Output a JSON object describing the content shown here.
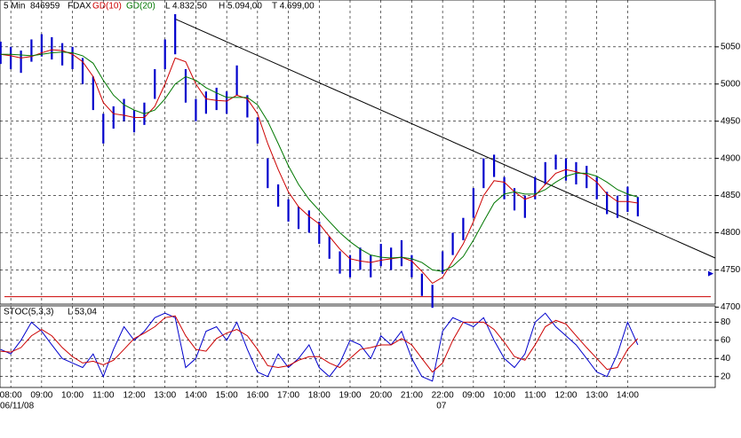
{
  "chart_data": [
    {
      "type": "range_bar",
      "interval": "5 Min",
      "id": "846959",
      "symbol": "FDAX",
      "stats": [
        "L 4.832,50",
        "H 5.094,00",
        "T 4.699,00"
      ],
      "x": [
        -0.33,
        0,
        0.33,
        0.67,
        1,
        1.33,
        1.67,
        2,
        2.33,
        2.67,
        3,
        3.33,
        3.67,
        4,
        4.33,
        4.67,
        5,
        5.33,
        5.67,
        6,
        6.33,
        6.67,
        7,
        7.33,
        7.67,
        8,
        8.33,
        8.67,
        9,
        9.33,
        9.67,
        10,
        10.33,
        10.67,
        11,
        11.33,
        11.67,
        12,
        12.33,
        12.67,
        13,
        13.33,
        13.67,
        14,
        14.33,
        14.67,
        15,
        15.33,
        15.67,
        16,
        16.33,
        16.67,
        17,
        17.33,
        17.67,
        18,
        18.33,
        18.67,
        19,
        19.33,
        19.67,
        20,
        20.33
      ],
      "high": [
        5057,
        5050,
        5045,
        5060,
        5067,
        5063,
        5055,
        5050,
        5035,
        5010,
        4960,
        4970,
        4980,
        4965,
        4975,
        5020,
        5060,
        5094,
        5020,
        4980,
        4990,
        4995,
        4990,
        5025,
        4985,
        4955,
        4900,
        4865,
        4845,
        4835,
        4830,
        4815,
        4795,
        4775,
        4770,
        4780,
        4770,
        4785,
        4780,
        4790,
        4770,
        4745,
        4730,
        4775,
        4800,
        4820,
        4860,
        4900,
        4905,
        4875,
        4860,
        4850,
        4875,
        4895,
        4905,
        4900,
        4895,
        4890,
        4875,
        4855,
        4850,
        4862,
        4848
      ],
      "low": [
        5027,
        5020,
        5015,
        5030,
        5037,
        5033,
        5025,
        5020,
        5000,
        4965,
        4920,
        4940,
        4950,
        4935,
        4945,
        4980,
        5020,
        5040,
        4975,
        4950,
        4960,
        4965,
        4960,
        4985,
        4955,
        4920,
        4860,
        4835,
        4815,
        4805,
        4800,
        4785,
        4765,
        4745,
        4740,
        4750,
        4740,
        4755,
        4750,
        4755,
        4740,
        4715,
        4699,
        4745,
        4770,
        4790,
        4820,
        4860,
        4875,
        4845,
        4830,
        4820,
        4845,
        4865,
        4885,
        4870,
        4865,
        4860,
        4845,
        4825,
        4820,
        4828,
        4822
      ],
      "bar_color": "#0000cc",
      "series": [
        {
          "name": "GD(10)",
          "color": "#cc0000",
          "values": [
            5040,
            5038,
            5035,
            5037,
            5042,
            5046,
            5045,
            5040,
            5030,
            5010,
            4975,
            4960,
            4958,
            4955,
            4955,
            4970,
            5000,
            5035,
            5030,
            5000,
            4980,
            4978,
            4977,
            4985,
            4980,
            4960,
            4920,
            4885,
            4855,
            4835,
            4822,
            4812,
            4795,
            4778,
            4765,
            4762,
            4760,
            4763,
            4765,
            4767,
            4762,
            4748,
            4732,
            4740,
            4762,
            4785,
            4815,
            4850,
            4870,
            4868,
            4855,
            4845,
            4850,
            4865,
            4880,
            4885,
            4882,
            4878,
            4868,
            4852,
            4842,
            4842,
            4840
          ]
        },
        {
          "name": "GD(20)",
          "color": "#007700",
          "values": [
            5040,
            5040,
            5039,
            5038,
            5040,
            5042,
            5043,
            5042,
            5038,
            5028,
            5005,
            4985,
            4972,
            4965,
            4960,
            4965,
            4980,
            5000,
            5010,
            5005,
            4995,
            4988,
            4982,
            4982,
            4982,
            4972,
            4950,
            4920,
            4890,
            4865,
            4845,
            4830,
            4815,
            4800,
            4788,
            4778,
            4770,
            4767,
            4766,
            4767,
            4765,
            4760,
            4750,
            4748,
            4755,
            4768,
            4790,
            4815,
            4840,
            4852,
            4855,
            4852,
            4852,
            4858,
            4868,
            4876,
            4880,
            4880,
            4876,
            4868,
            4858,
            4852,
            4848
          ]
        }
      ],
      "trendline": {
        "x": [
          5.3,
          22.84
        ],
        "y": [
          5088,
          4766
        ],
        "color": "#000000"
      },
      "support": {
        "value": 4714,
        "color": "#cc0000"
      },
      "last_marker": 4745,
      "ylim": [
        4704,
        5113
      ],
      "yticks": [
        4700,
        4750,
        4800,
        4850,
        4900,
        4950,
        5000,
        5050
      ],
      "xlim": [
        -0.35,
        22.84
      ],
      "xticks": [
        {
          "value": 0,
          "label": "08:00"
        },
        {
          "value": 1,
          "label": "09:00"
        },
        {
          "value": 2,
          "label": "10:00"
        },
        {
          "value": 3,
          "label": "11:00"
        },
        {
          "value": 4,
          "label": "12:00"
        },
        {
          "value": 5,
          "label": "13:00"
        },
        {
          "value": 6,
          "label": "14:00"
        },
        {
          "value": 7,
          "label": "15:00"
        },
        {
          "value": 8,
          "label": "16:00"
        },
        {
          "value": 9,
          "label": "17:00"
        },
        {
          "value": 10,
          "label": "18:00"
        },
        {
          "value": 11,
          "label": "19:00"
        },
        {
          "value": 12,
          "label": "20:00"
        },
        {
          "value": 13,
          "label": "21:00"
        },
        {
          "value": 14,
          "label": "22:00"
        },
        {
          "value": 15,
          "label": "09:00"
        },
        {
          "value": 16,
          "label": "10:00"
        },
        {
          "value": 17,
          "label": "11:00"
        },
        {
          "value": 18,
          "label": "12:00"
        },
        {
          "value": 19,
          "label": "13:00"
        },
        {
          "value": 20,
          "label": "14:00"
        }
      ],
      "date_labels": [
        {
          "value": -0.35,
          "label": "06/11/08"
        },
        {
          "value": 13.8,
          "label": "07"
        }
      ],
      "grid": true
    },
    {
      "type": "line",
      "title": "STOC(5,3,3)",
      "stats": [
        "L 53,04"
      ],
      "series": [
        {
          "name": "K",
          "color": "#0000cc",
          "values": [
            50,
            45,
            60,
            80,
            70,
            55,
            40,
            35,
            30,
            45,
            20,
            50,
            75,
            60,
            70,
            85,
            90,
            85,
            30,
            40,
            70,
            75,
            60,
            80,
            50,
            25,
            20,
            45,
            30,
            40,
            55,
            30,
            20,
            35,
            60,
            55,
            40,
            65,
            55,
            70,
            40,
            20,
            15,
            70,
            85,
            80,
            75,
            85,
            60,
            40,
            30,
            45,
            80,
            90,
            75,
            65,
            55,
            40,
            25,
            20,
            45,
            80,
            55
          ]
        },
        {
          "name": "D",
          "color": "#cc0000",
          "values": [
            48,
            47,
            52,
            65,
            72,
            65,
            52,
            42,
            35,
            37,
            33,
            38,
            50,
            62,
            68,
            75,
            85,
            87,
            65,
            50,
            48,
            62,
            68,
            72,
            65,
            50,
            32,
            30,
            32,
            38,
            42,
            42,
            35,
            30,
            40,
            50,
            52,
            55,
            55,
            62,
            55,
            40,
            25,
            35,
            60,
            80,
            80,
            80,
            72,
            58,
            42,
            38,
            55,
            75,
            82,
            78,
            65,
            52,
            40,
            28,
            30,
            50,
            62
          ]
        }
      ],
      "ylim": [
        8,
        98
      ],
      "yticks": [
        20,
        40,
        60,
        80
      ],
      "grid": true
    }
  ]
}
